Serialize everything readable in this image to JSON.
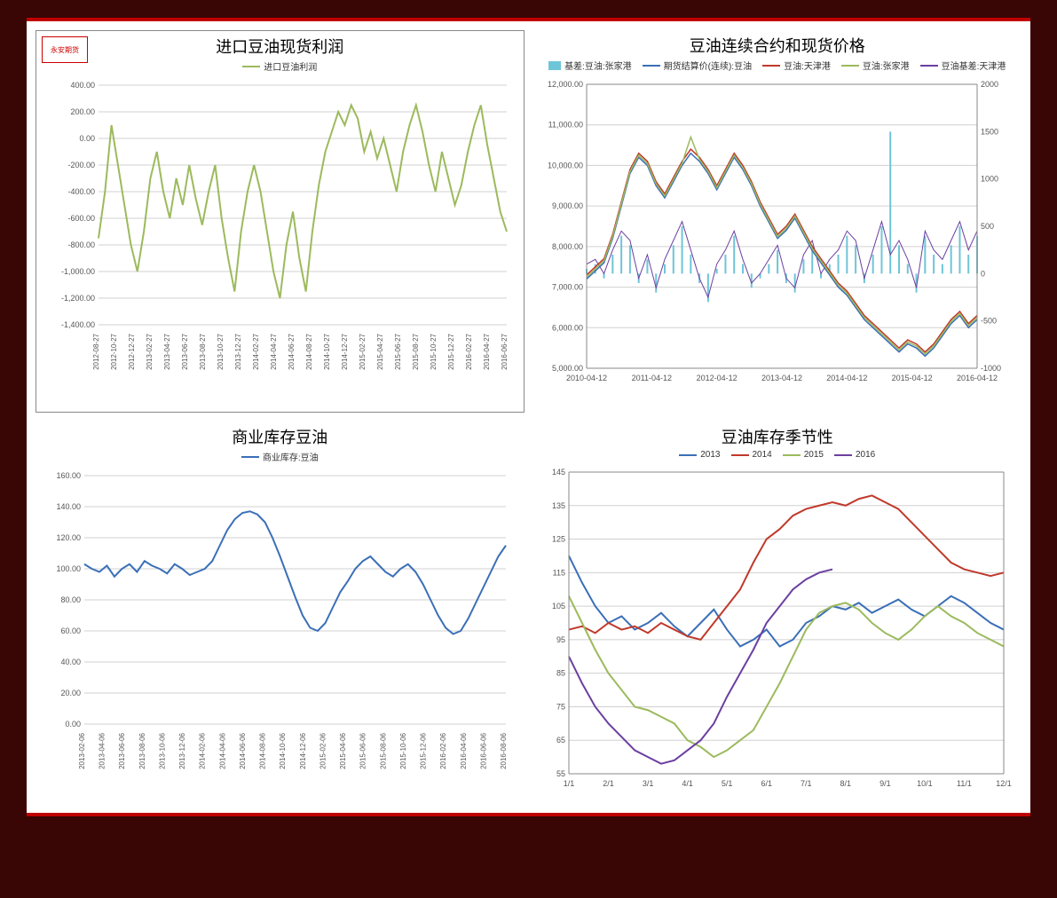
{
  "logo_text": "永安期货",
  "chart1": {
    "type": "line",
    "title": "进口豆油现货利润",
    "legend": [
      {
        "label": "进口豆油利润",
        "color": "#9cba5c"
      }
    ],
    "ylim": [
      -1400,
      400
    ],
    "ytick_step": 200,
    "yticks": [
      "400.00",
      "200.00",
      "0.00",
      "-200.00",
      "-400.00",
      "-600.00",
      "-800.00",
      "-1,000.00",
      "-1,200.00",
      "-1,400.00"
    ],
    "xticks": [
      "2012-08-27",
      "2012-10-27",
      "2012-12-27",
      "2013-02-27",
      "2013-04-27",
      "2013-06-27",
      "2013-08-27",
      "2013-10-27",
      "2013-12-27",
      "2014-02-27",
      "2014-04-27",
      "2014-06-27",
      "2014-08-27",
      "2014-10-27",
      "2014-12-27",
      "2015-02-27",
      "2015-04-27",
      "2015-06-27",
      "2015-08-27",
      "2015-10-27",
      "2015-12-27",
      "2016-02-27",
      "2016-04-27",
      "2016-06-27"
    ],
    "series": [
      {
        "color": "#9cba5c",
        "width": 2,
        "data": [
          -750,
          -400,
          100,
          -200,
          -500,
          -800,
          -1000,
          -700,
          -300,
          -100,
          -400,
          -600,
          -300,
          -500,
          -200,
          -450,
          -650,
          -400,
          -200,
          -600,
          -900,
          -1150,
          -700,
          -400,
          -200,
          -400,
          -700,
          -1000,
          -1200,
          -800,
          -550,
          -900,
          -1150,
          -700,
          -350,
          -100,
          50,
          200,
          100,
          250,
          150,
          -100,
          50,
          -150,
          0,
          -200,
          -400,
          -100,
          100,
          250,
          50,
          -200,
          -400,
          -100,
          -300,
          -500,
          -350,
          -100,
          100,
          250,
          -50,
          -300,
          -550,
          -700
        ]
      }
    ],
    "background_color": "#ffffff",
    "grid_color": "#d0d0d0",
    "title_fontsize": 18,
    "label_fontsize": 9
  },
  "chart2": {
    "type": "line_dual_axis",
    "title": "豆油连续合约和现货价格",
    "legend": [
      {
        "label": "基差:豆油:张家港",
        "color": "#6ec5d8",
        "style": "area"
      },
      {
        "label": "期货结算价(连续):豆油",
        "color": "#3a6fb7",
        "style": "line"
      },
      {
        "label": "豆油:天津港",
        "color": "#c0392b",
        "style": "line"
      },
      {
        "label": "豆油:张家港",
        "color": "#9cba5c",
        "style": "line"
      },
      {
        "label": "豆油基差:天津港",
        "color": "#6b3fa0",
        "style": "line"
      }
    ],
    "y1_lim": [
      5000,
      12000
    ],
    "y1_ticks": [
      "12,000.00",
      "11,000.00",
      "10,000.00",
      "9,000.00",
      "8,000.00",
      "7,000.00",
      "6,000.00",
      "5,000.00"
    ],
    "y2_lim": [
      -1000,
      2000
    ],
    "y2_ticks": [
      "2000",
      "1500",
      "1000",
      "500",
      "0",
      "-500",
      "-1000"
    ],
    "xticks": [
      "2010-04-12",
      "2011-04-12",
      "2012-04-12",
      "2013-04-12",
      "2014-04-12",
      "2015-04-12",
      "2016-04-12"
    ],
    "price_series": [
      {
        "color": "#3a6fb7",
        "width": 1.5,
        "data": [
          7200,
          7400,
          7600,
          8200,
          9000,
          9800,
          10200,
          10000,
          9500,
          9200,
          9600,
          10000,
          10300,
          10100,
          9800,
          9400,
          9800,
          10200,
          9900,
          9500,
          9000,
          8600,
          8200,
          8400,
          8700,
          8300,
          7900,
          7600,
          7300,
          7000,
          6800,
          6500,
          6200,
          6000,
          5800,
          5600,
          5400,
          5600,
          5500,
          5300,
          5500,
          5800,
          6100,
          6300,
          6000,
          6200
        ]
      },
      {
        "color": "#c0392b",
        "width": 1.5,
        "data": [
          7300,
          7500,
          7700,
          8300,
          9100,
          9900,
          10300,
          10100,
          9600,
          9300,
          9700,
          10100,
          10400,
          10200,
          9900,
          9500,
          9900,
          10300,
          10000,
          9600,
          9100,
          8700,
          8300,
          8500,
          8800,
          8400,
          8000,
          7700,
          7400,
          7100,
          6900,
          6600,
          6300,
          6100,
          5900,
          5700,
          5500,
          5700,
          5600,
          5400,
          5600,
          5900,
          6200,
          6400,
          6100,
          6300
        ]
      },
      {
        "color": "#9cba5c",
        "width": 1.5,
        "data": [
          7250,
          7450,
          7650,
          8250,
          9050,
          9850,
          10250,
          10050,
          9550,
          9250,
          9650,
          10050,
          10700,
          10150,
          9850,
          9450,
          9850,
          10250,
          9950,
          9550,
          9050,
          8650,
          8250,
          8450,
          8750,
          8350,
          7950,
          7650,
          7350,
          7050,
          6850,
          6550,
          6250,
          6050,
          5850,
          5650,
          5450,
          5650,
          5550,
          5350,
          5550,
          5850,
          6150,
          6350,
          6050,
          6250
        ]
      }
    ],
    "basis_series": {
      "color": "#6ec5d8",
      "zero": 0,
      "data": [
        50,
        100,
        -50,
        200,
        400,
        300,
        -100,
        150,
        -200,
        100,
        300,
        500,
        200,
        -100,
        -300,
        50,
        200,
        400,
        100,
        -150,
        -50,
        100,
        250,
        -100,
        -200,
        150,
        300,
        -50,
        100,
        200,
        400,
        300,
        -100,
        200,
        500,
        1500,
        300,
        100,
        -200,
        400,
        200,
        100,
        300,
        500,
        200,
        400
      ]
    },
    "purple_series": {
      "color": "#6b3fa0",
      "width": 1,
      "data": [
        100,
        150,
        0,
        250,
        450,
        350,
        -50,
        200,
        -150,
        150,
        350,
        550,
        250,
        -50,
        -250,
        100,
        250,
        450,
        150,
        -100,
        0,
        150,
        300,
        -50,
        -150,
        200,
        350,
        0,
        150,
        250,
        450,
        350,
        -50,
        250,
        550,
        200,
        350,
        150,
        -150,
        450,
        250,
        150,
        350,
        550,
        250,
        450
      ]
    },
    "background_color": "#ffffff",
    "grid_color": "#d0d0d0",
    "title_fontsize": 18
  },
  "chart3": {
    "type": "line",
    "title": "商业库存豆油",
    "legend": [
      {
        "label": "商业库存:豆油",
        "color": "#3a6fb7"
      }
    ],
    "ylim": [
      0,
      160
    ],
    "ytick_step": 20,
    "yticks": [
      "160.00",
      "140.00",
      "120.00",
      "100.00",
      "80.00",
      "60.00",
      "40.00",
      "20.00",
      "0.00"
    ],
    "xticks": [
      "2013-02-06",
      "2013-04-06",
      "2013-06-06",
      "2013-08-06",
      "2013-10-06",
      "2013-12-06",
      "2014-02-06",
      "2014-04-06",
      "2014-06-06",
      "2014-08-06",
      "2014-10-06",
      "2014-12-06",
      "2015-02-06",
      "2015-04-06",
      "2015-06-06",
      "2015-08-06",
      "2015-10-06",
      "2015-12-06",
      "2016-02-06",
      "2016-04-06",
      "2016-06-06",
      "2016-08-06"
    ],
    "series": [
      {
        "color": "#3a6fb7",
        "width": 2,
        "data": [
          103,
          100,
          98,
          102,
          95,
          100,
          103,
          98,
          105,
          102,
          100,
          97,
          103,
          100,
          96,
          98,
          100,
          105,
          115,
          125,
          132,
          136,
          137,
          135,
          130,
          120,
          108,
          95,
          82,
          70,
          62,
          60,
          65,
          75,
          85,
          92,
          100,
          105,
          108,
          103,
          98,
          95,
          100,
          103,
          98,
          90,
          80,
          70,
          62,
          58,
          60,
          68,
          78,
          88,
          98,
          108,
          115
        ]
      }
    ],
    "background_color": "#ffffff",
    "grid_color": "#d0d0d0",
    "title_fontsize": 18
  },
  "chart4": {
    "type": "line",
    "title": "豆油库存季节性",
    "legend": [
      {
        "label": "2013",
        "color": "#3a6fb7"
      },
      {
        "label": "2014",
        "color": "#c0392b"
      },
      {
        "label": "2015",
        "color": "#9cba5c"
      },
      {
        "label": "2016",
        "color": "#6b3fa0"
      }
    ],
    "ylim": [
      55,
      145
    ],
    "ytick_step": 10,
    "yticks": [
      "145",
      "135",
      "125",
      "115",
      "105",
      "95",
      "85",
      "75",
      "65",
      "55"
    ],
    "xticks": [
      "1/1",
      "2/1",
      "3/1",
      "4/1",
      "5/1",
      "6/1",
      "7/1",
      "8/1",
      "9/1",
      "10/1",
      "11/1",
      "12/1"
    ],
    "series": [
      {
        "color": "#3a6fb7",
        "width": 2,
        "data": [
          120,
          112,
          105,
          100,
          102,
          98,
          100,
          103,
          99,
          96,
          100,
          104,
          98,
          93,
          95,
          98,
          93,
          95,
          100,
          102,
          105,
          104,
          106,
          103,
          105,
          107,
          104,
          102,
          105,
          108,
          106,
          103,
          100,
          98
        ]
      },
      {
        "color": "#c0392b",
        "width": 2,
        "data": [
          98,
          99,
          97,
          100,
          98,
          99,
          97,
          100,
          98,
          96,
          95,
          100,
          105,
          110,
          118,
          125,
          128,
          132,
          134,
          135,
          136,
          135,
          137,
          138,
          136,
          134,
          130,
          126,
          122,
          118,
          116,
          115,
          114,
          115
        ]
      },
      {
        "color": "#9cba5c",
        "width": 2,
        "data": [
          108,
          100,
          92,
          85,
          80,
          75,
          74,
          72,
          70,
          65,
          63,
          60,
          62,
          65,
          68,
          75,
          82,
          90,
          98,
          103,
          105,
          106,
          104,
          100,
          97,
          95,
          98,
          102,
          105,
          102,
          100,
          97,
          95,
          93
        ]
      },
      {
        "color": "#6b3fa0",
        "width": 2,
        "data": [
          90,
          82,
          75,
          70,
          66,
          62,
          60,
          58,
          59,
          62,
          65,
          70,
          78,
          85,
          92,
          100,
          105,
          110,
          113,
          115,
          116
        ]
      }
    ],
    "background_color": "#ffffff",
    "grid_color": "#d0d0d0",
    "title_fontsize": 18
  }
}
